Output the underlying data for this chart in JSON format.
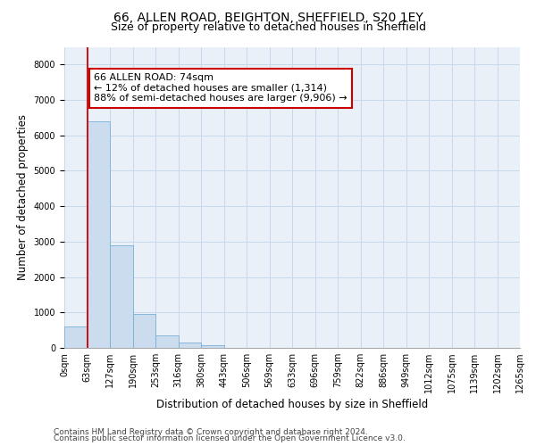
{
  "title_line1": "66, ALLEN ROAD, BEIGHTON, SHEFFIELD, S20 1EY",
  "title_line2": "Size of property relative to detached houses in Sheffield",
  "xlabel": "Distribution of detached houses by size in Sheffield",
  "ylabel": "Number of detached properties",
  "bar_values": [
    600,
    6400,
    2900,
    960,
    360,
    150,
    80,
    0,
    0,
    0,
    0,
    0,
    0,
    0,
    0,
    0,
    0,
    0,
    0,
    0
  ],
  "bar_labels": [
    "0sqm",
    "63sqm",
    "127sqm",
    "190sqm",
    "253sqm",
    "316sqm",
    "380sqm",
    "443sqm",
    "506sqm",
    "569sqm",
    "633sqm",
    "696sqm",
    "759sqm",
    "822sqm",
    "886sqm",
    "949sqm",
    "1012sqm",
    "1075sqm",
    "1139sqm",
    "1202sqm",
    "1265sqm"
  ],
  "bar_color": "#ccdcef",
  "bar_edge_color": "#7aafd4",
  "vline_color": "#cc0000",
  "annotation_text": "66 ALLEN ROAD: 74sqm\n← 12% of detached houses are smaller (1,314)\n88% of semi-detached houses are larger (9,906) →",
  "annotation_box_color": "#ffffff",
  "annotation_box_edge_color": "#cc0000",
  "ylim": [
    0,
    8500
  ],
  "yticks": [
    0,
    1000,
    2000,
    3000,
    4000,
    5000,
    6000,
    7000,
    8000
  ],
  "grid_color": "#c8d8ec",
  "background_color": "#eaf0f8",
  "footer_line1": "Contains HM Land Registry data © Crown copyright and database right 2024.",
  "footer_line2": "Contains public sector information licensed under the Open Government Licence v3.0.",
  "title_fontsize": 10,
  "subtitle_fontsize": 9,
  "axis_label_fontsize": 8.5,
  "tick_fontsize": 7,
  "annotation_fontsize": 8,
  "footer_fontsize": 6.5
}
